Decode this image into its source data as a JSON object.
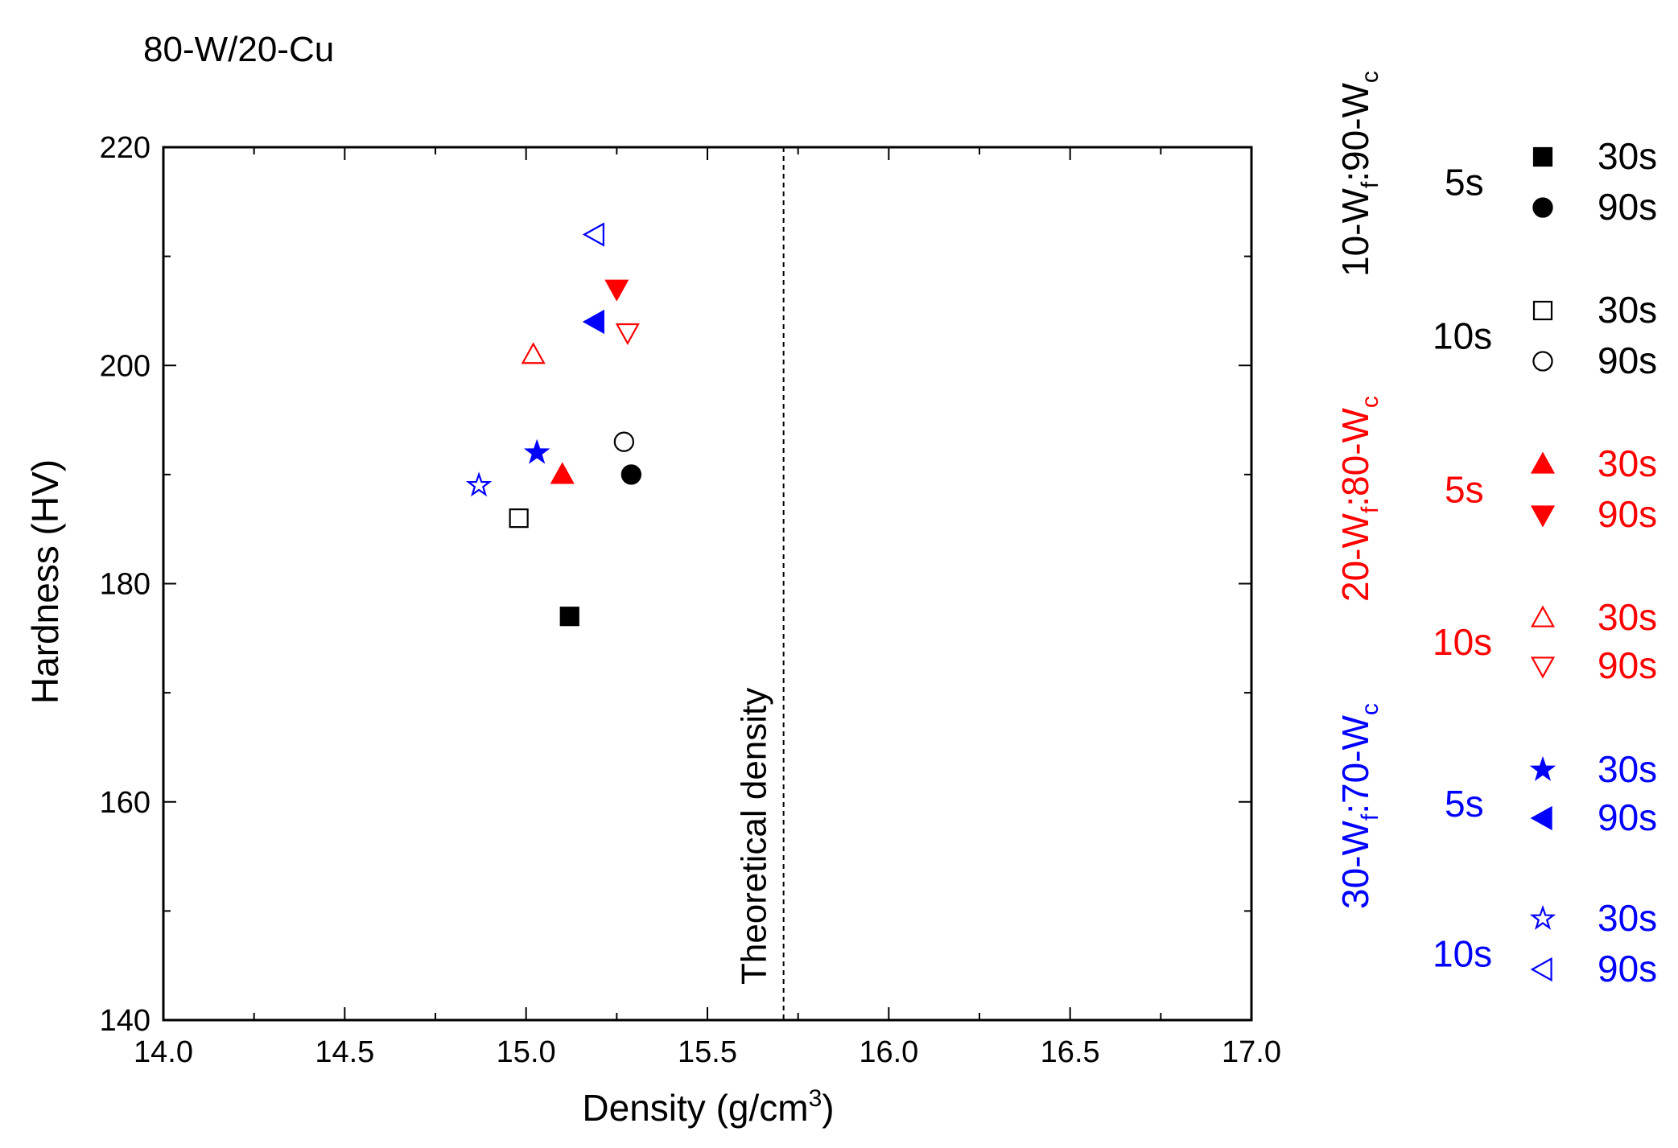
{
  "chart_data": {
    "type": "scatter",
    "title": "80-W/20-Cu",
    "xlabel": {
      "main": "Density (g/cm",
      "sup": "3",
      "tail": ")"
    },
    "ylabel": "Hardness (HV)",
    "xlim": [
      14.0,
      17.0
    ],
    "ylim": [
      140,
      220
    ],
    "x_major_ticks": [
      14.0,
      14.5,
      15.0,
      15.5,
      16.0,
      16.5,
      17.0
    ],
    "x_tick_labels": [
      "14.0",
      "14.5",
      "15.0",
      "15.5",
      "16.0",
      "16.5",
      "17.0"
    ],
    "x_minor_ticks": [
      14.25,
      14.75,
      15.25,
      15.75,
      16.25,
      16.75
    ],
    "y_major_ticks": [
      140,
      160,
      180,
      200,
      220
    ],
    "y_tick_labels": [
      "140",
      "160",
      "180",
      "200",
      "220"
    ],
    "y_minor_ticks": [
      150,
      170,
      190,
      210
    ],
    "grid": false,
    "reference_line": {
      "x": 15.71,
      "label": "Theoretical density",
      "style": "dashed"
    },
    "series": [
      {
        "group": 0,
        "time": "5s",
        "duration": "30s",
        "marker": "square",
        "filled": true,
        "color": "#000000",
        "points": [
          [
            15.12,
            177
          ]
        ]
      },
      {
        "group": 0,
        "time": "5s",
        "duration": "90s",
        "marker": "circle",
        "filled": true,
        "color": "#000000",
        "points": [
          [
            15.29,
            190
          ]
        ]
      },
      {
        "group": 0,
        "time": "10s",
        "duration": "30s",
        "marker": "square",
        "filled": false,
        "color": "#000000",
        "points": [
          [
            14.98,
            186
          ]
        ]
      },
      {
        "group": 0,
        "time": "10s",
        "duration": "90s",
        "marker": "circle",
        "filled": false,
        "color": "#000000",
        "points": [
          [
            15.27,
            193
          ]
        ]
      },
      {
        "group": 1,
        "time": "5s",
        "duration": "30s",
        "marker": "triangle-up",
        "filled": true,
        "color": "#ff0000",
        "points": [
          [
            15.1,
            190
          ]
        ]
      },
      {
        "group": 1,
        "time": "5s",
        "duration": "90s",
        "marker": "triangle-down",
        "filled": true,
        "color": "#ff0000",
        "points": [
          [
            15.25,
            207
          ]
        ]
      },
      {
        "group": 1,
        "time": "10s",
        "duration": "30s",
        "marker": "triangle-up",
        "filled": false,
        "color": "#ff0000",
        "points": [
          [
            15.02,
            201
          ]
        ]
      },
      {
        "group": 1,
        "time": "10s",
        "duration": "90s",
        "marker": "triangle-down",
        "filled": false,
        "color": "#ff0000",
        "points": [
          [
            15.28,
            203
          ]
        ]
      },
      {
        "group": 2,
        "time": "5s",
        "duration": "30s",
        "marker": "star",
        "filled": true,
        "color": "#0000ff",
        "points": [
          [
            15.03,
            192
          ]
        ]
      },
      {
        "group": 2,
        "time": "5s",
        "duration": "90s",
        "marker": "triangle-left",
        "filled": true,
        "color": "#0000ff",
        "points": [
          [
            15.19,
            204
          ]
        ]
      },
      {
        "group": 2,
        "time": "10s",
        "duration": "30s",
        "marker": "star",
        "filled": false,
        "color": "#0000ff",
        "points": [
          [
            14.87,
            189
          ]
        ]
      },
      {
        "group": 2,
        "time": "10s",
        "duration": "90s",
        "marker": "triangle-left",
        "filled": false,
        "color": "#0000ff",
        "points": [
          [
            15.19,
            212
          ]
        ]
      }
    ],
    "legend": {
      "placement": "right",
      "groups": [
        {
          "label_pre": "10-W",
          "sub1": "f",
          "label_mid": ":90-W",
          "sub2": "c",
          "color": "#000000"
        },
        {
          "label_pre": "20-W",
          "sub1": "f",
          "label_mid": ":80-W",
          "sub2": "c",
          "color": "#ff0000"
        },
        {
          "label_pre": "30-W",
          "sub1": "f",
          "label_mid": ":70-W",
          "sub2": "c",
          "color": "#0000ff"
        }
      ]
    }
  }
}
